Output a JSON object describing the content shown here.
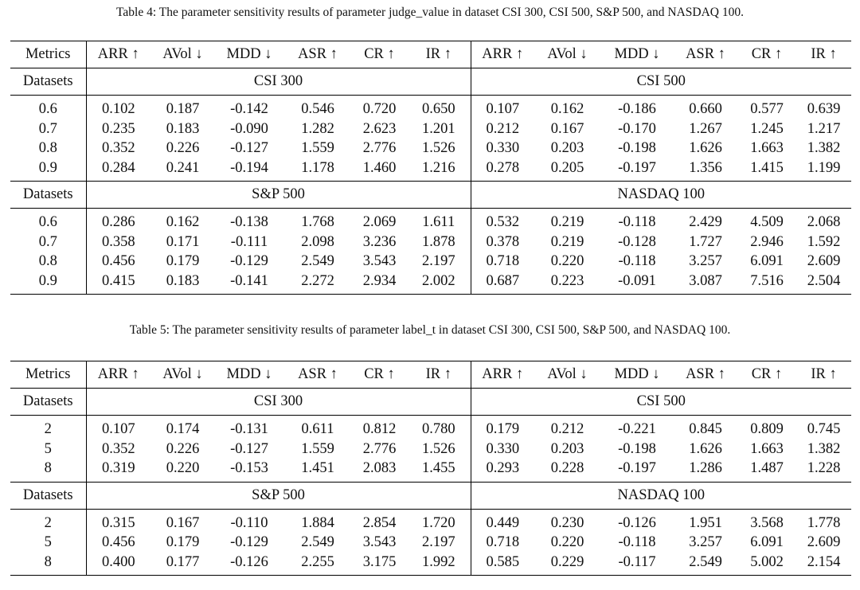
{
  "tables": [
    {
      "caption": "Table 4: The parameter sensitivity results of parameter judge_value in dataset CSI 300, CSI 500, S&P 500, and NASDAQ 100.",
      "header": {
        "first": "Metrics",
        "metrics": [
          "ARR ↑",
          "AVol ↓",
          "MDD ↓",
          "ASR ↑",
          "CR ↑",
          "IR ↑",
          "ARR ↑",
          "AVol ↓",
          "MDD ↓",
          "ASR ↑",
          "CR ↑",
          "IR ↑"
        ]
      },
      "blocks": [
        {
          "label": "Datasets",
          "left": "CSI 300",
          "right": "CSI 500",
          "rows": [
            {
              "param": "0.6",
              "values": [
                "0.102",
                "0.187",
                "-0.142",
                "0.546",
                "0.720",
                "0.650",
                "0.107",
                "0.162",
                "-0.186",
                "0.660",
                "0.577",
                "0.639"
              ],
              "bold": [
                7
              ]
            },
            {
              "param": "0.7",
              "values": [
                "0.235",
                "0.183",
                "-0.090",
                "1.282",
                "2.623",
                "1.201",
                "0.212",
                "0.167",
                "-0.170",
                "1.267",
                "1.245",
                "1.217"
              ],
              "bold": [
                1,
                2,
                8
              ]
            },
            {
              "param": "0.8",
              "values": [
                "0.352",
                "0.226",
                "-0.127",
                "1.559",
                "2.776",
                "1.526",
                "0.330",
                "0.203",
                "-0.198",
                "1.626",
                "1.663",
                "1.382"
              ],
              "bold": [
                0,
                3,
                4,
                5,
                6,
                9,
                10,
                11
              ]
            },
            {
              "param": "0.9",
              "values": [
                "0.284",
                "0.241",
                "-0.194",
                "1.178",
                "1.460",
                "1.216",
                "0.278",
                "0.205",
                "-0.197",
                "1.356",
                "1.415",
                "1.199"
              ],
              "bold": []
            }
          ]
        },
        {
          "label": "Datasets",
          "left": "S&P 500",
          "right": "NASDAQ 100",
          "rows": [
            {
              "param": "0.6",
              "values": [
                "0.286",
                "0.162",
                "-0.138",
                "1.768",
                "2.069",
                "1.611",
                "0.532",
                "0.219",
                "-0.118",
                "2.429",
                "4.509",
                "2.068"
              ],
              "bold": [
                1,
                7
              ]
            },
            {
              "param": "0.7",
              "values": [
                "0.358",
                "0.171",
                "-0.111",
                "2.098",
                "3.236",
                "1.878",
                "0.378",
                "0.219",
                "-0.128",
                "1.727",
                "2.946",
                "1.592"
              ],
              "bold": [
                2
              ]
            },
            {
              "param": "0.8",
              "values": [
                "0.456",
                "0.179",
                "-0.129",
                "2.549",
                "3.543",
                "2.197",
                "0.718",
                "0.220",
                "-0.118",
                "3.257",
                "6.091",
                "2.609"
              ],
              "bold": [
                0,
                3,
                4,
                5,
                6,
                9,
                11
              ]
            },
            {
              "param": "0.9",
              "values": [
                "0.415",
                "0.183",
                "-0.141",
                "2.272",
                "2.934",
                "2.002",
                "0.687",
                "0.223",
                "-0.091",
                "3.087",
                "7.516",
                "2.504"
              ],
              "bold": [
                8,
                10
              ]
            }
          ]
        }
      ]
    },
    {
      "caption": "Table 5: The parameter sensitivity results of parameter label_t in dataset CSI 300, CSI 500, S&P 500, and NASDAQ 100.",
      "header": {
        "first": "Metrics",
        "metrics": [
          "ARR ↑",
          "AVol ↓",
          "MDD ↓",
          "ASR ↑",
          "CR ↑",
          "IR ↑",
          "ARR ↑",
          "AVol ↓",
          "MDD ↓",
          "ASR ↑",
          "CR ↑",
          "IR ↑"
        ]
      },
      "blocks": [
        {
          "label": "Datasets",
          "left": "CSI 300",
          "right": "CSI 500",
          "rows": [
            {
              "param": "2",
              "values": [
                "0.107",
                "0.174",
                "-0.131",
                "0.611",
                "0.812",
                "0.780",
                "0.179",
                "0.212",
                "-0.221",
                "0.845",
                "0.809",
                "0.745"
              ],
              "bold": [
                1
              ]
            },
            {
              "param": "5",
              "values": [
                "0.352",
                "0.226",
                "-0.127",
                "1.559",
                "2.776",
                "1.526",
                "0.330",
                "0.203",
                "-0.198",
                "1.626",
                "1.663",
                "1.382"
              ],
              "bold": [
                0,
                2,
                3,
                4,
                5,
                6,
                7,
                9,
                10,
                11
              ]
            },
            {
              "param": "8",
              "values": [
                "0.319",
                "0.220",
                "-0.153",
                "1.451",
                "2.083",
                "1.455",
                "0.293",
                "0.228",
                "-0.197",
                "1.286",
                "1.487",
                "1.228"
              ],
              "bold": [
                8
              ]
            }
          ]
        },
        {
          "label": "Datasets",
          "left": "S&P 500",
          "right": "NASDAQ 100",
          "rows": [
            {
              "param": "2",
              "values": [
                "0.315",
                "0.167",
                "-0.110",
                "1.884",
                "2.854",
                "1.720",
                "0.449",
                "0.230",
                "-0.126",
                "1.951",
                "3.568",
                "1.778"
              ],
              "bold": [
                1,
                2
              ]
            },
            {
              "param": "5",
              "values": [
                "0.456",
                "0.179",
                "-0.129",
                "2.549",
                "3.543",
                "2.197",
                "0.718",
                "0.220",
                "-0.118",
                "3.257",
                "6.091",
                "2.609"
              ],
              "bold": [
                0,
                3,
                4,
                5,
                6,
                7,
                9,
                10,
                11
              ]
            },
            {
              "param": "8",
              "values": [
                "0.400",
                "0.177",
                "-0.126",
                "2.255",
                "3.175",
                "1.992",
                "0.585",
                "0.229",
                "-0.117",
                "2.549",
                "5.002",
                "2.154"
              ],
              "bold": [
                8
              ]
            }
          ]
        }
      ]
    }
  ]
}
